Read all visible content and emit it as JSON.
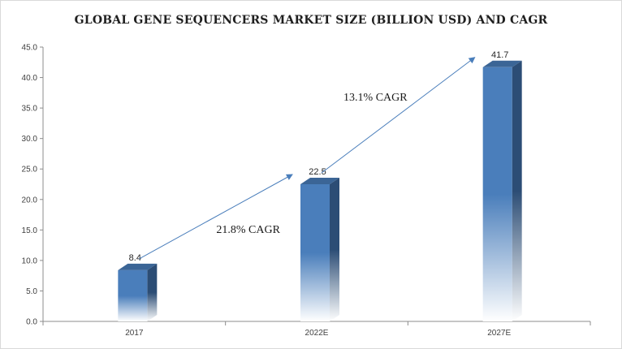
{
  "chart_data": {
    "type": "bar",
    "title": "GLOBAL GENE SEQUENCERS MARKET SIZE (BILLION USD) AND CAGR",
    "xlabel": "",
    "ylabel": "",
    "categories": [
      "2017",
      "2022E",
      "2027E"
    ],
    "values": [
      8.4,
      22.5,
      41.7
    ],
    "data_labels": [
      "8.4",
      "22.5",
      "41.7"
    ],
    "ylim": [
      0,
      45
    ],
    "yticks": [
      "0.0",
      "5.0",
      "10.0",
      "15.0",
      "20.0",
      "25.0",
      "30.0",
      "35.0",
      "40.0",
      "45.0"
    ],
    "grid": false,
    "legend": "none",
    "bar_color": "#4a7ebb",
    "annotations": [
      {
        "text": "21.8% CAGR",
        "from": 0,
        "to": 1
      },
      {
        "text": "13.1% CAGR",
        "from": 1,
        "to": 2
      }
    ]
  }
}
